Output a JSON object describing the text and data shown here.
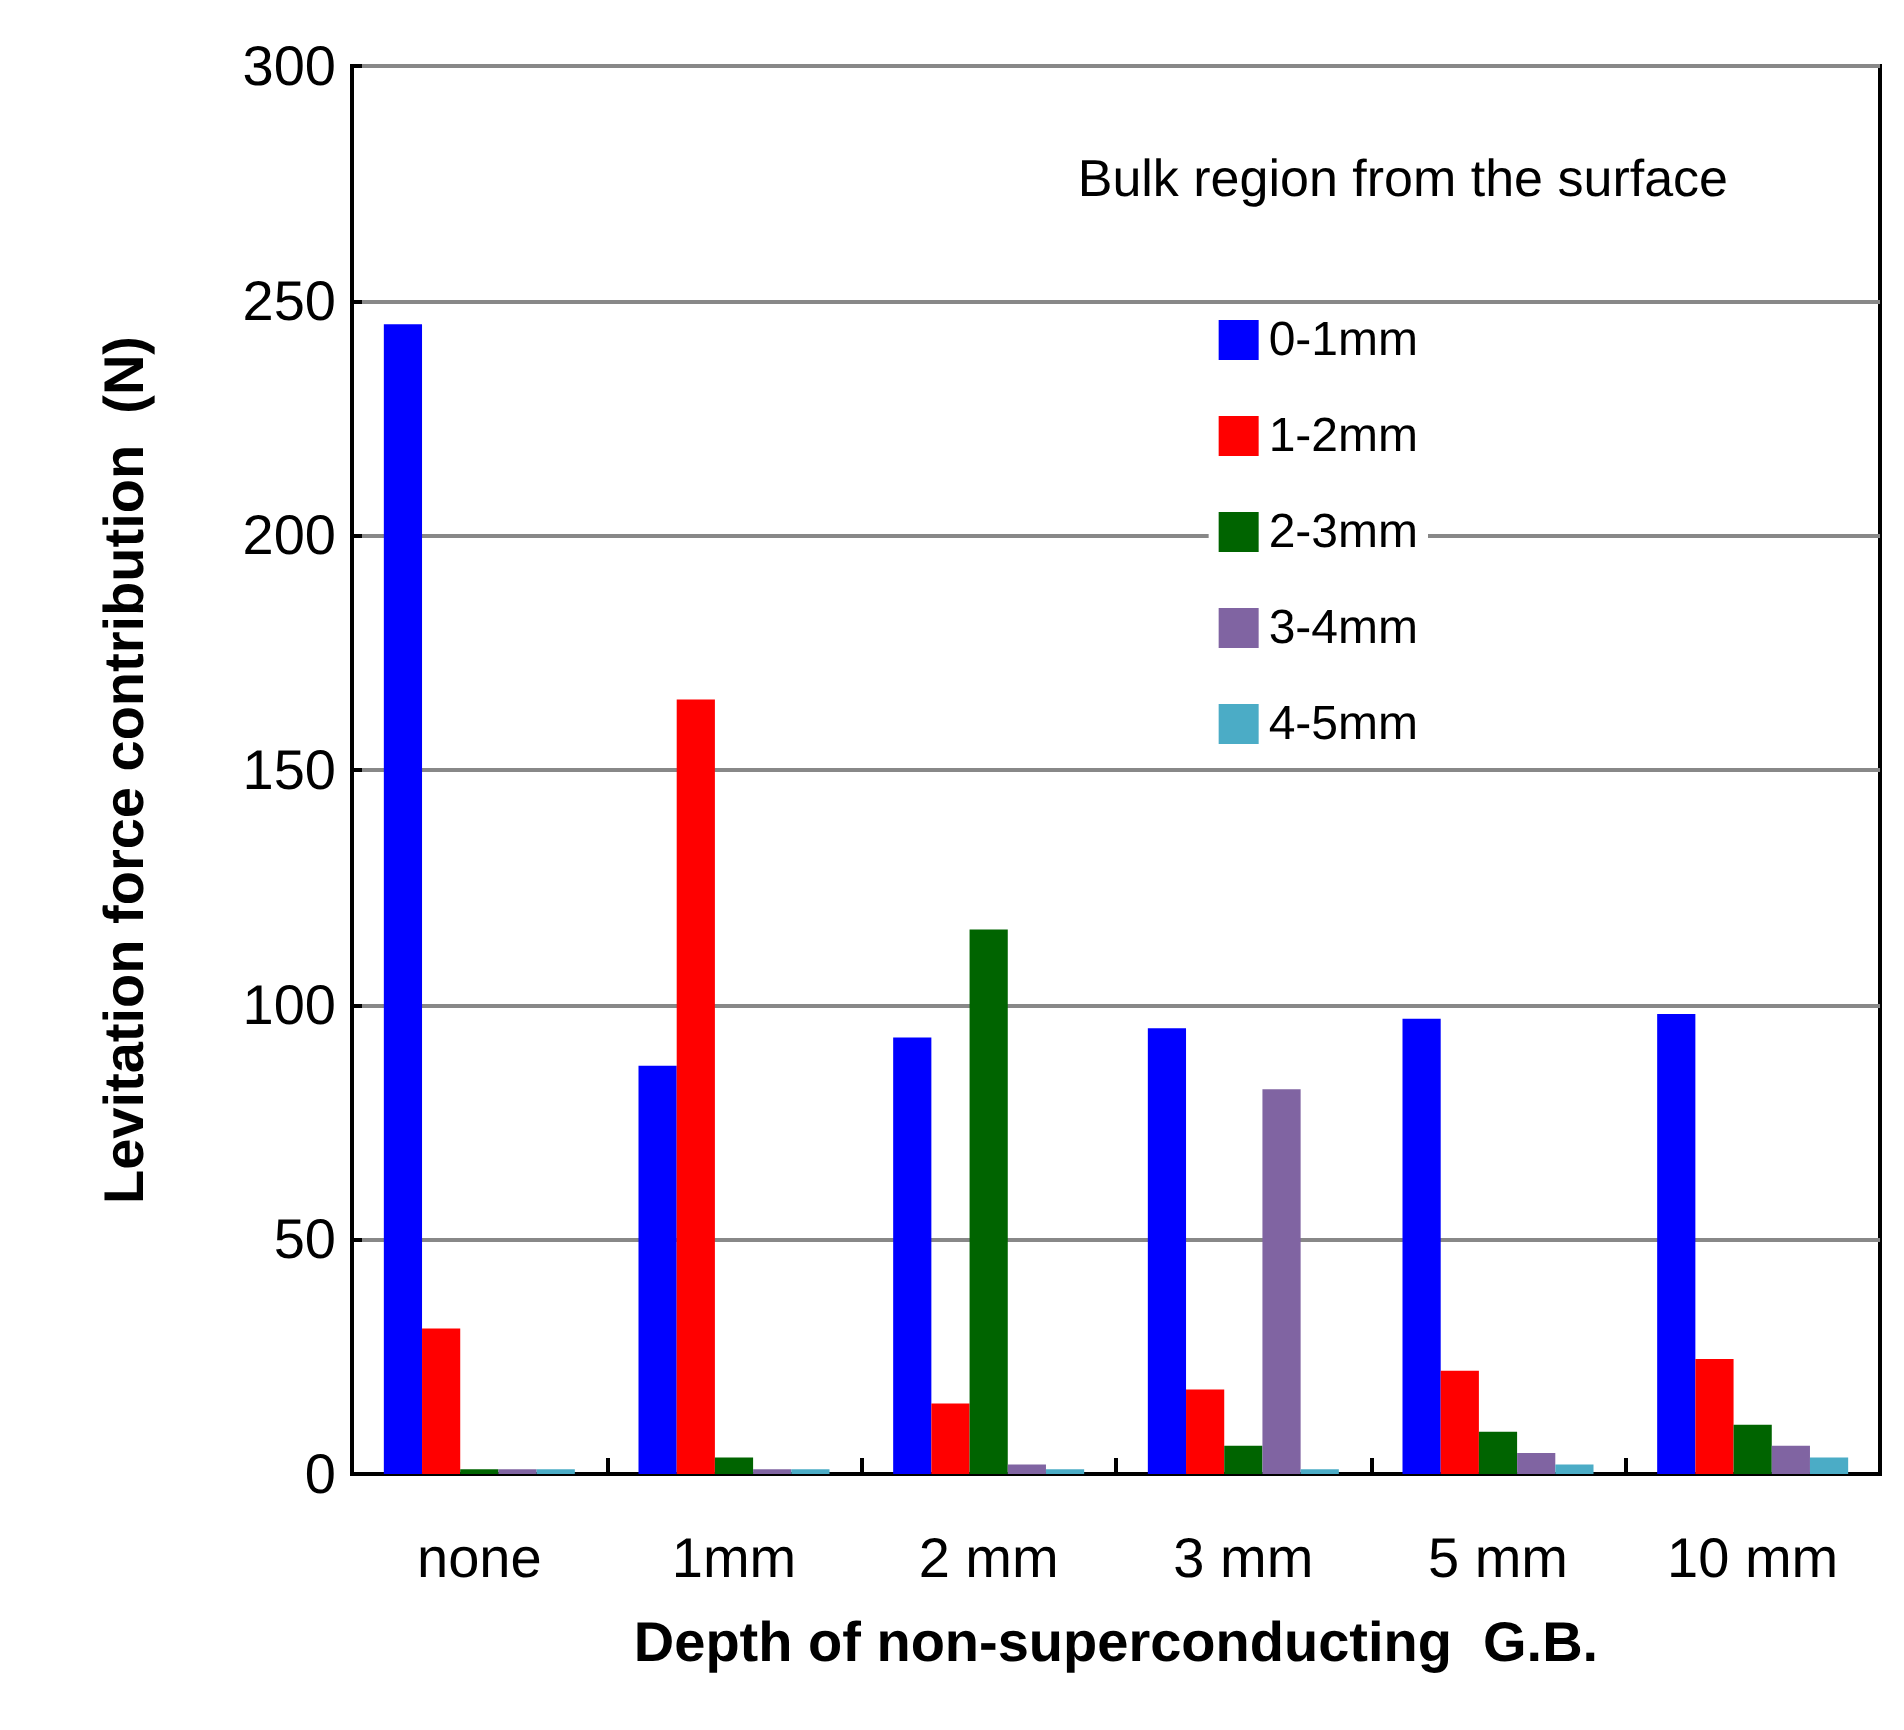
{
  "chart_data": {
    "type": "bar",
    "xlabel": "Depth of non-superconducting  G.B.",
    "ylabel": "Levitation force contribution  (N)",
    "legend_title": "Bulk region from the surface",
    "categories": [
      "none",
      "1mm",
      "2 mm",
      "3 mm",
      "5 mm",
      "10 mm"
    ],
    "series": [
      {
        "name": "0-1mm",
        "color": "#0000ff",
        "values": [
          245,
          87,
          93,
          95,
          97,
          98
        ]
      },
      {
        "name": "1-2mm",
        "color": "#ff0000",
        "values": [
          31,
          165,
          15,
          18,
          22,
          24.5
        ]
      },
      {
        "name": "2-3mm",
        "color": "#006400",
        "values": [
          1,
          3.5,
          116,
          6,
          9,
          10.5
        ]
      },
      {
        "name": "3-4mm",
        "color": "#8064a2",
        "values": [
          1,
          1,
          2,
          82,
          4.5,
          6
        ]
      },
      {
        "name": "4-5mm",
        "color": "#4bacc6",
        "values": [
          1,
          1,
          1,
          1,
          2,
          3.5
        ]
      }
    ],
    "ylim": [
      0,
      300
    ],
    "yticks": [
      0,
      50,
      100,
      150,
      200,
      250,
      300
    ],
    "grid": "y",
    "legend": "top right"
  }
}
